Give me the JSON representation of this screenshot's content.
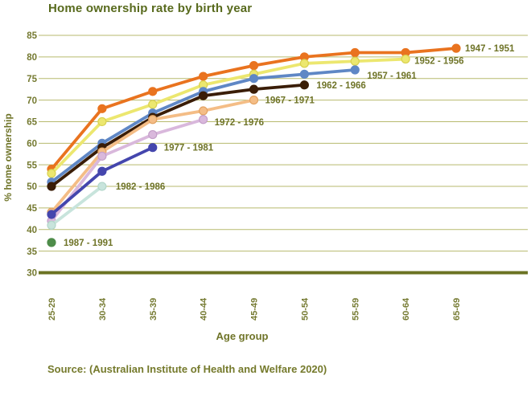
{
  "title": "Home ownership rate by birth year",
  "y_axis_title": "% home ownership",
  "x_axis_title": "Age group",
  "source": "Source: (Australian Institute of Health and Welfare 2020)",
  "colors": {
    "background": "#ffffff",
    "title_text": "#586a1d",
    "axis_text": "#757a31",
    "label_text": "#6f7428",
    "gridline": "#b7ba6e",
    "axis_line": "#6b7323"
  },
  "chart_data": {
    "type": "line",
    "categories": [
      "25-29",
      "30-34",
      "35-39",
      "40-44",
      "45-49",
      "50-54",
      "55-59",
      "60-64",
      "65-69"
    ],
    "series": [
      {
        "name": "1947 - 1951",
        "color": "#e9731f",
        "dot_stroke": "#e9731f",
        "values": [
          54,
          68,
          72,
          75.5,
          78,
          80,
          81,
          81,
          82
        ]
      },
      {
        "name": "1952 - 1956",
        "color": "#ece76f",
        "dot_stroke": "#d9d14f",
        "values": [
          53,
          65,
          69,
          73.5,
          76,
          78.5,
          79,
          79.5
        ]
      },
      {
        "name": "1957 - 1961",
        "color": "#5f87c5",
        "dot_stroke": "#5f87c5",
        "values": [
          51,
          60,
          67,
          72,
          75,
          76,
          77
        ]
      },
      {
        "name": "1962 - 1966",
        "color": "#3a1d07",
        "dot_stroke": "#3a1d07",
        "values": [
          50,
          59,
          66,
          71,
          72.5,
          73.5
        ]
      },
      {
        "name": "1967 - 1971",
        "color": "#f4bd86",
        "dot_stroke": "#e2a261",
        "values": [
          44,
          58,
          65.5,
          67.5,
          70
        ]
      },
      {
        "name": "1972 - 1976",
        "color": "#d9b8dc",
        "dot_stroke": "#c49fc9",
        "values": [
          42,
          57,
          62,
          65.5
        ]
      },
      {
        "name": "1977 - 1981",
        "color": "#4446ad",
        "dot_stroke": "#4446ad",
        "values": [
          43.5,
          53.5,
          59
        ]
      },
      {
        "name": "1982 - 1986",
        "color": "#c8e4dc",
        "dot_stroke": "#b2d6ca",
        "values": [
          41,
          50
        ]
      },
      {
        "name": "1987 - 1991",
        "color": "#4e8c4a",
        "dot_stroke": "#4e8c4a",
        "values": [
          37
        ]
      }
    ],
    "title": "Home ownership rate by birth year",
    "xlabel": "Age group",
    "ylabel": "% home ownership",
    "ylim": [
      30,
      85
    ],
    "ytick_step": 5,
    "ytick_labels": [
      "85",
      "80",
      "75",
      "70",
      "65",
      "60",
      "55",
      "50",
      "45",
      "40",
      "35",
      "30"
    ],
    "grid": true,
    "legend_position": "inline-labels-at-line-ends"
  }
}
